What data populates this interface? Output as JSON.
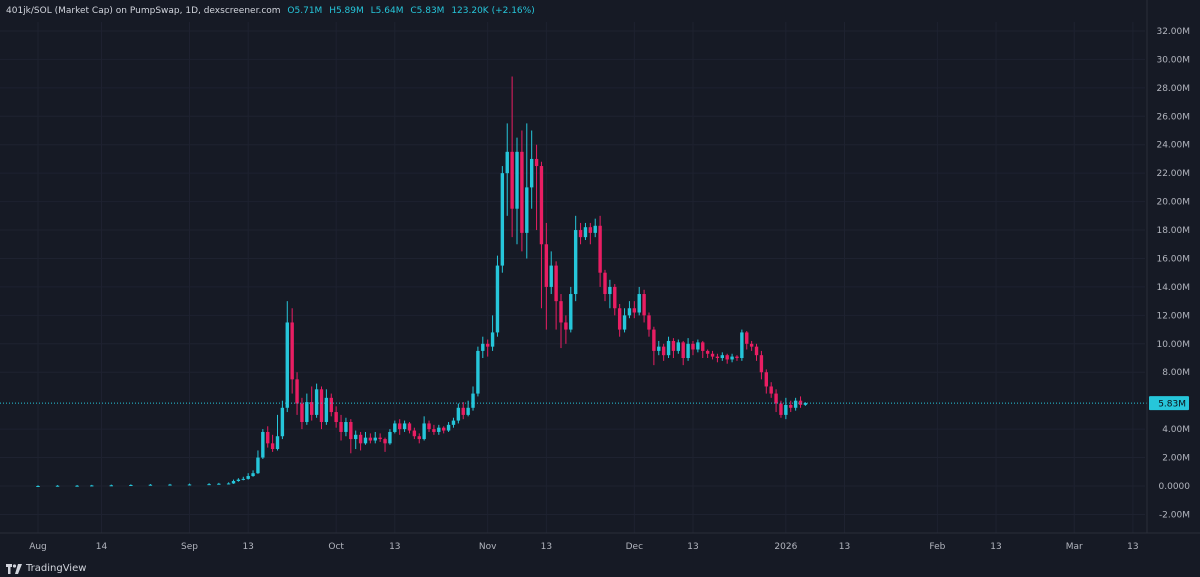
{
  "legend": {
    "symbol": "401jk/SOL (Market Cap) on PumpSwap, 1D, dexscreener.com",
    "open": "O5.71M",
    "high": "H5.89M",
    "low": "L5.64M",
    "close": "C5.83M",
    "change": "123.20K (+2.16%)"
  },
  "watermark": "TradingView",
  "colors": {
    "up": "#26c6da",
    "down": "#e91e63",
    "grid": "#1e2230",
    "bg": "#161a25"
  },
  "chart_data": {
    "type": "candlestick",
    "ylim": [
      -3,
      33
    ],
    "y_ticks": [
      {
        "v": 32,
        "label": "32.00M"
      },
      {
        "v": 30,
        "label": "30.00M"
      },
      {
        "v": 28,
        "label": "28.00M"
      },
      {
        "v": 26,
        "label": "26.00M"
      },
      {
        "v": 24,
        "label": "24.00M"
      },
      {
        "v": 22,
        "label": "22.00M"
      },
      {
        "v": 20,
        "label": "20.00M"
      },
      {
        "v": 18,
        "label": "18.00M"
      },
      {
        "v": 16,
        "label": "16.00M"
      },
      {
        "v": 14,
        "label": "14.00M"
      },
      {
        "v": 12,
        "label": "12.00M"
      },
      {
        "v": 10,
        "label": "10.00M"
      },
      {
        "v": 8,
        "label": "8.00M"
      },
      {
        "v": 4,
        "label": "4.00M"
      },
      {
        "v": 2,
        "label": "2.00M"
      },
      {
        "v": 0,
        "label": "0.0000"
      },
      {
        "v": -2,
        "label": "-2.00M"
      }
    ],
    "x_ticks": [
      {
        "day": 1,
        "label": "Aug"
      },
      {
        "day": 14,
        "label": "14"
      },
      {
        "day": 32,
        "label": "Sep"
      },
      {
        "day": 44,
        "label": "13"
      },
      {
        "day": 62,
        "label": "Oct"
      },
      {
        "day": 74,
        "label": "13"
      },
      {
        "day": 93,
        "label": "Nov"
      },
      {
        "day": 105,
        "label": "13"
      },
      {
        "day": 123,
        "label": "Dec"
      },
      {
        "day": 135,
        "label": "13"
      },
      {
        "day": 154,
        "label": "2026"
      },
      {
        "day": 166,
        "label": "13"
      },
      {
        "day": 185,
        "label": "Feb"
      },
      {
        "day": 197,
        "label": "13"
      },
      {
        "day": 213,
        "label": "Mar"
      },
      {
        "day": 225,
        "label": "13"
      }
    ],
    "last_price": {
      "value": 5.83,
      "label": "5.83M"
    },
    "candles": [
      [
        1,
        0,
        0,
        0.05,
        -0.05
      ],
      [
        5,
        0,
        0.02,
        0.06,
        -0.04
      ],
      [
        9,
        0.01,
        0.02,
        0.07,
        -0.03
      ],
      [
        12,
        0.02,
        0.04,
        0.08,
        -0.02
      ],
      [
        16,
        0.04,
        0.05,
        0.1,
        0
      ],
      [
        20,
        0.05,
        0.07,
        0.12,
        0.01
      ],
      [
        24,
        0.07,
        0.09,
        0.14,
        0.03
      ],
      [
        28,
        0.09,
        0.1,
        0.15,
        0.05
      ],
      [
        32,
        0.1,
        0.11,
        0.17,
        0.06
      ],
      [
        36,
        0.11,
        0.13,
        0.2,
        0.08
      ],
      [
        38,
        0.13,
        0.16,
        0.22,
        0.1
      ],
      [
        40,
        0.16,
        0.18,
        0.26,
        0.12
      ],
      [
        41,
        0.18,
        0.35,
        0.45,
        0.15
      ],
      [
        42,
        0.35,
        0.45,
        0.55,
        0.3
      ],
      [
        43,
        0.45,
        0.5,
        0.65,
        0.4
      ],
      [
        44,
        0.5,
        0.7,
        0.9,
        0.45
      ],
      [
        45,
        0.7,
        0.9,
        1.1,
        0.65
      ],
      [
        46,
        0.9,
        2.0,
        2.5,
        0.85
      ],
      [
        47,
        2.0,
        3.8,
        4.0,
        1.9
      ],
      [
        48,
        3.8,
        3.0,
        4.2,
        2.7
      ],
      [
        49,
        3.0,
        2.6,
        3.6,
        2.4
      ],
      [
        50,
        2.6,
        3.5,
        5.0,
        2.5
      ],
      [
        51,
        3.5,
        5.5,
        6.0,
        3.3
      ],
      [
        52,
        5.5,
        11.5,
        13.0,
        5.2
      ],
      [
        53,
        11.5,
        7.5,
        12.5,
        6.5
      ],
      [
        54,
        7.5,
        5.8,
        8.0,
        5.0
      ],
      [
        55,
        5.8,
        4.5,
        6.2,
        4.0
      ],
      [
        56,
        4.5,
        5.9,
        6.5,
        4.3
      ],
      [
        57,
        5.9,
        5.0,
        7.0,
        4.6
      ],
      [
        58,
        5.0,
        6.8,
        7.2,
        4.8
      ],
      [
        59,
        6.8,
        4.5,
        7.0,
        4.0
      ],
      [
        60,
        4.5,
        6.2,
        6.8,
        4.3
      ],
      [
        61,
        6.2,
        5.2,
        6.5,
        4.9
      ],
      [
        62,
        5.2,
        4.5,
        5.6,
        4.1
      ],
      [
        63,
        4.5,
        3.8,
        5.0,
        3.2
      ],
      [
        64,
        3.8,
        4.5,
        4.8,
        3.5
      ],
      [
        65,
        4.5,
        3.3,
        4.7,
        2.3
      ],
      [
        66,
        3.3,
        3.6,
        3.9,
        2.6
      ],
      [
        67,
        3.6,
        3.0,
        3.8,
        2.5
      ],
      [
        68,
        3.0,
        3.4,
        3.8,
        2.9
      ],
      [
        69,
        3.4,
        3.2,
        3.7,
        3.0
      ],
      [
        70,
        3.2,
        3.4,
        3.8,
        3.0
      ],
      [
        71,
        3.4,
        3.3,
        3.7,
        3.1
      ],
      [
        72,
        3.3,
        3.0,
        3.4,
        2.4
      ],
      [
        73,
        3.0,
        3.8,
        4.0,
        2.9
      ],
      [
        74,
        3.8,
        4.4,
        4.6,
        3.7
      ],
      [
        75,
        4.4,
        4.0,
        4.7,
        3.6
      ],
      [
        76,
        4.0,
        4.4,
        4.6,
        3.8
      ],
      [
        77,
        4.4,
        3.9,
        4.5,
        3.7
      ],
      [
        78,
        3.9,
        3.5,
        4.1,
        3.3
      ],
      [
        79,
        3.5,
        3.3,
        3.7,
        3.0
      ],
      [
        80,
        3.3,
        4.4,
        4.9,
        3.2
      ],
      [
        81,
        4.4,
        4.0,
        4.6,
        3.8
      ],
      [
        82,
        4.0,
        3.8,
        4.3,
        3.6
      ],
      [
        83,
        3.8,
        4.1,
        4.3,
        3.6
      ],
      [
        84,
        4.1,
        3.9,
        4.2,
        3.7
      ],
      [
        85,
        3.9,
        4.3,
        4.5,
        3.8
      ],
      [
        86,
        4.3,
        4.6,
        4.8,
        4.1
      ],
      [
        87,
        4.6,
        5.5,
        5.8,
        4.4
      ],
      [
        88,
        5.5,
        5.0,
        5.9,
        4.7
      ],
      [
        89,
        5.0,
        5.5,
        6.0,
        4.9
      ],
      [
        90,
        5.5,
        6.5,
        7.0,
        5.3
      ],
      [
        91,
        6.5,
        9.5,
        9.8,
        6.3
      ],
      [
        92,
        9.5,
        10.0,
        10.5,
        9.0
      ],
      [
        93,
        10.0,
        9.8,
        10.3,
        9.1
      ],
      [
        94,
        9.8,
        10.8,
        12.0,
        9.5
      ],
      [
        95,
        10.8,
        15.5,
        16.2,
        10.5
      ],
      [
        96,
        15.5,
        22.0,
        22.5,
        15.0
      ],
      [
        97,
        22.0,
        23.5,
        25.5,
        19.0
      ],
      [
        98,
        23.5,
        19.5,
        28.8,
        17.5
      ],
      [
        99,
        19.5,
        23.5,
        24.5,
        17.0
      ],
      [
        100,
        23.5,
        17.8,
        25.0,
        16.5
      ],
      [
        101,
        17.8,
        21.0,
        25.5,
        16.0
      ],
      [
        102,
        21.0,
        23.0,
        25.0,
        19.5
      ],
      [
        103,
        23.0,
        22.5,
        24.0,
        18.0
      ],
      [
        104,
        22.5,
        17.0,
        22.8,
        12.5
      ],
      [
        105,
        17.0,
        14.0,
        18.5,
        11.0
      ],
      [
        106,
        14.0,
        15.5,
        16.5,
        13.5
      ],
      [
        107,
        15.5,
        13.0,
        15.8,
        11.0
      ],
      [
        108,
        13.0,
        11.5,
        13.5,
        9.7
      ],
      [
        109,
        11.5,
        11.0,
        12.0,
        10.0
      ],
      [
        110,
        11.0,
        13.5,
        14.0,
        10.8
      ],
      [
        111,
        13.5,
        18.0,
        19.0,
        13.0
      ],
      [
        112,
        18.0,
        17.5,
        18.5,
        17.0
      ],
      [
        113,
        17.5,
        18.2,
        18.5,
        17.3
      ],
      [
        114,
        18.2,
        17.8,
        18.5,
        17.0
      ],
      [
        115,
        17.8,
        18.3,
        18.8,
        17.5
      ],
      [
        116,
        18.3,
        15.0,
        19.0,
        14.0
      ],
      [
        117,
        15.0,
        13.5,
        15.2,
        13.0
      ],
      [
        118,
        13.5,
        14.0,
        14.5,
        12.5
      ],
      [
        119,
        14.0,
        12.5,
        14.2,
        12.0
      ],
      [
        120,
        12.5,
        11.0,
        12.8,
        10.5
      ],
      [
        121,
        11.0,
        12.0,
        12.5,
        10.8
      ],
      [
        122,
        12.0,
        12.5,
        13.0,
        11.8
      ],
      [
        123,
        12.5,
        12.2,
        13.0,
        11.8
      ],
      [
        124,
        12.2,
        13.5,
        14.0,
        12.0
      ],
      [
        125,
        13.5,
        12.0,
        13.8,
        11.5
      ],
      [
        126,
        12.0,
        11.0,
        12.2,
        10.5
      ],
      [
        127,
        11.0,
        9.5,
        11.2,
        8.5
      ],
      [
        128,
        9.5,
        9.8,
        10.2,
        9.2
      ],
      [
        129,
        9.8,
        9.2,
        10.0,
        8.8
      ],
      [
        130,
        9.2,
        10.2,
        10.5,
        9.0
      ],
      [
        131,
        10.2,
        9.5,
        10.4,
        9.0
      ],
      [
        132,
        9.5,
        10.1,
        10.3,
        9.3
      ],
      [
        133,
        10.1,
        9.0,
        10.2,
        8.5
      ],
      [
        134,
        9.0,
        10.0,
        10.4,
        8.8
      ],
      [
        135,
        10.0,
        9.6,
        10.2,
        9.2
      ],
      [
        136,
        9.6,
        10.1,
        10.3,
        9.4
      ],
      [
        137,
        10.1,
        9.5,
        10.2,
        9.0
      ],
      [
        138,
        9.5,
        9.3,
        9.6,
        9.0
      ],
      [
        139,
        9.3,
        9.1,
        9.5,
        8.9
      ],
      [
        140,
        9.1,
        9.0,
        9.3,
        8.7
      ],
      [
        141,
        9.0,
        9.2,
        9.4,
        8.8
      ],
      [
        142,
        9.2,
        8.9,
        9.3,
        8.6
      ],
      [
        143,
        8.9,
        9.1,
        9.3,
        8.7
      ],
      [
        144,
        9.1,
        9.0,
        9.2,
        8.8
      ],
      [
        145,
        9.0,
        10.8,
        11.0,
        8.8
      ],
      [
        146,
        10.8,
        10.0,
        10.9,
        9.6
      ],
      [
        147,
        10.0,
        9.8,
        10.2,
        9.5
      ],
      [
        148,
        9.8,
        9.2,
        10.0,
        8.8
      ],
      [
        149,
        9.2,
        8.0,
        9.5,
        7.5
      ],
      [
        150,
        8.0,
        7.0,
        8.2,
        6.5
      ],
      [
        151,
        7.0,
        6.5,
        7.3,
        6.2
      ],
      [
        152,
        6.5,
        5.8,
        6.8,
        5.2
      ],
      [
        153,
        5.8,
        5.0,
        6.0,
        4.8
      ],
      [
        154,
        5.0,
        5.7,
        6.2,
        4.7
      ],
      [
        155,
        5.7,
        5.5,
        6.0,
        5.2
      ],
      [
        156,
        5.5,
        6.0,
        6.2,
        5.3
      ],
      [
        157,
        6.0,
        5.71,
        6.3,
        5.5
      ],
      [
        158,
        5.71,
        5.83,
        5.89,
        5.64
      ]
    ]
  }
}
